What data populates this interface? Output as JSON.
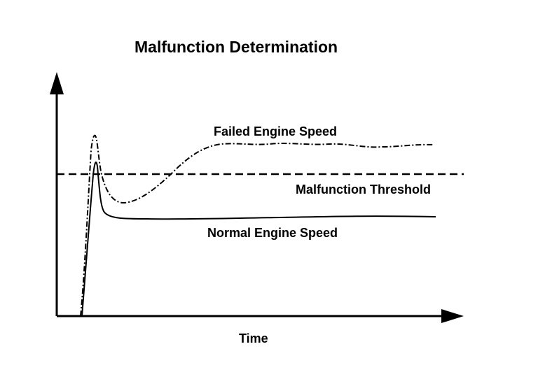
{
  "title": "Malfunction Determination",
  "labels": {
    "failed_speed": "Failed Engine Speed",
    "threshold": "Malfunction Threshold",
    "normal_speed": "Normal Engine Speed",
    "x_axis": "Time"
  },
  "colors": {
    "ink": "#000000",
    "background": "#ffffff"
  }
}
